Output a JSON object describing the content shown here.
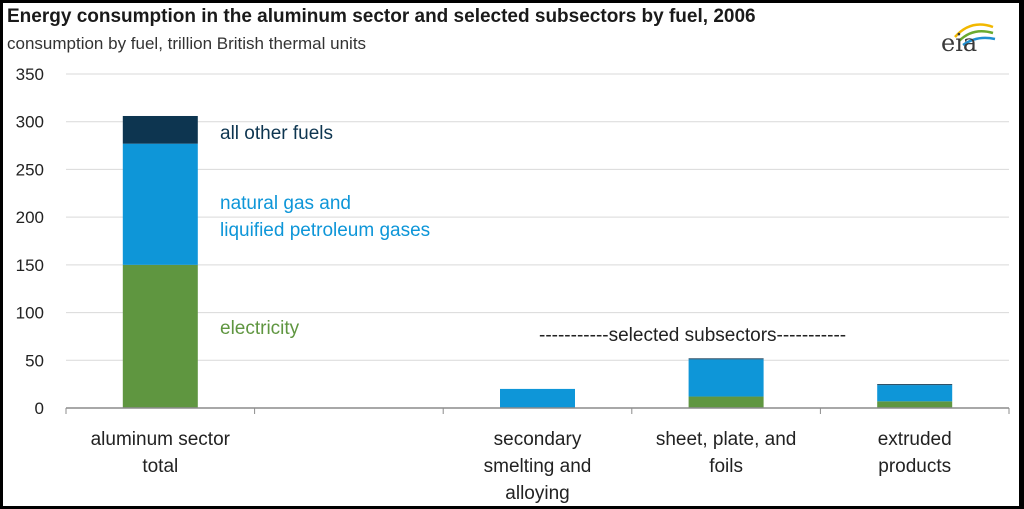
{
  "header": {
    "title": "Energy consumption in the aluminum sector and selected subsectors by fuel, 2006",
    "subtitle": "consumption by fuel, trillion British thermal units",
    "logo_text": "eia"
  },
  "colors": {
    "electricity": "#5f9640",
    "natural_gas": "#0e96d8",
    "other": "#0d3550",
    "grid": "#d9d9d9",
    "axis": "#8c8c8c"
  },
  "chart_data": {
    "type": "bar",
    "stacked": true,
    "categories": [
      [
        "aluminum sector",
        "total"
      ],
      [],
      [
        "secondary",
        "smelting and",
        "alloying"
      ],
      [
        "sheet, plate, and",
        "foils"
      ],
      [
        "extruded",
        "products"
      ]
    ],
    "series": [
      {
        "name": "electricity",
        "values": [
          150,
          null,
          0,
          12,
          7
        ]
      },
      {
        "name": "natural gas and liquified petroleum gases",
        "values": [
          127,
          null,
          20,
          39,
          17
        ]
      },
      {
        "name": "all other fuels",
        "values": [
          29,
          null,
          0,
          1,
          1
        ]
      }
    ],
    "series_labels": {
      "electricity": "electricity",
      "natural_gas_line1": "natural gas and",
      "natural_gas_line2": "liquified petroleum gases",
      "other": "all other fuels"
    },
    "annotation": "-----------selected  subsectors-----------",
    "ylim": [
      0,
      350
    ],
    "yticks": [
      0,
      50,
      100,
      150,
      200,
      250,
      300,
      350
    ],
    "grid": true,
    "legend": "inline labels right of first bar"
  }
}
